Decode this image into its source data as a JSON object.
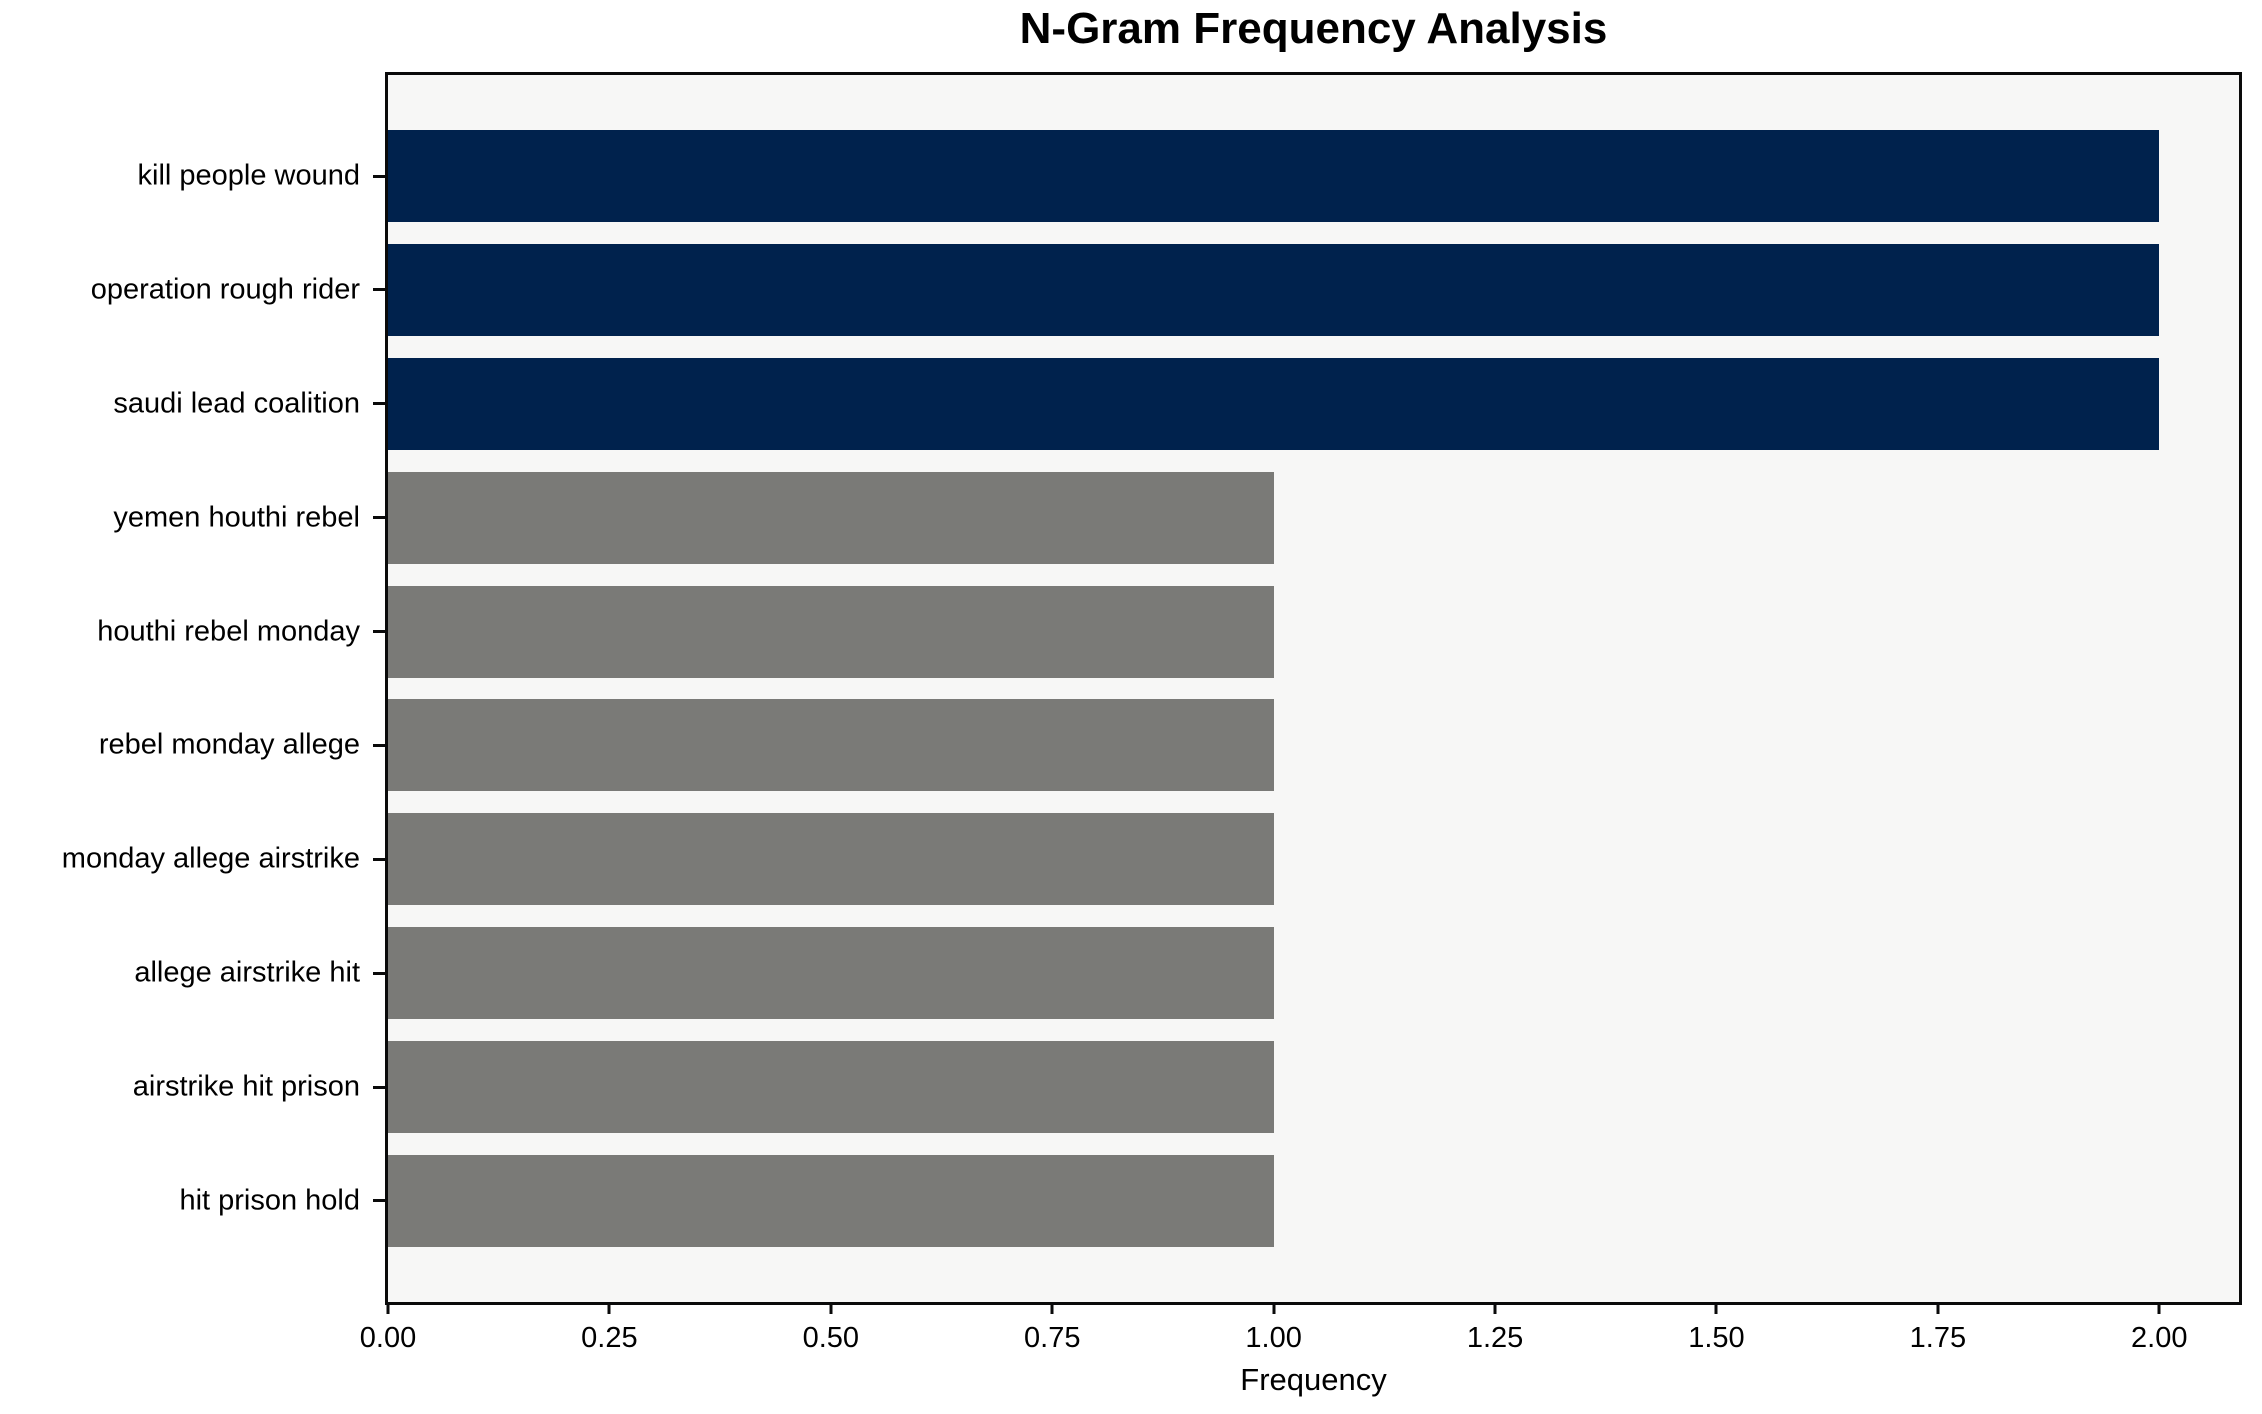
{
  "chart_data": {
    "type": "bar",
    "orientation": "horizontal",
    "title": "N-Gram Frequency Analysis",
    "xlabel": "Frequency",
    "ylabel": "",
    "categories": [
      "kill people wound",
      "operation rough rider",
      "saudi lead coalition",
      "yemen houthi rebel",
      "houthi rebel monday",
      "rebel monday allege",
      "monday allege airstrike",
      "allege airstrike hit",
      "airstrike hit prison",
      "hit prison hold"
    ],
    "values": [
      2,
      2,
      2,
      1,
      1,
      1,
      1,
      1,
      1,
      1
    ],
    "bar_colors": [
      "#00224d",
      "#00224d",
      "#00224d",
      "#7a7a77",
      "#7a7a77",
      "#7a7a77",
      "#7a7a77",
      "#7a7a77",
      "#7a7a77",
      "#7a7a77"
    ],
    "xlim": [
      0,
      2.09
    ],
    "xticks": [
      0,
      0.25,
      0.5,
      0.75,
      1.0,
      1.25,
      1.5,
      1.75,
      2.0
    ],
    "xtick_labels": [
      "0.00",
      "0.25",
      "0.50",
      "0.75",
      "1.00",
      "1.25",
      "1.50",
      "1.75",
      "2.00"
    ],
    "grid": false,
    "legend": null,
    "colors": {
      "highlight_bar": "#00224d",
      "default_bar": "#7a7a77",
      "plot_background": "#f7f7f6",
      "frame": "#0a0a0a",
      "text": "#000000"
    }
  }
}
